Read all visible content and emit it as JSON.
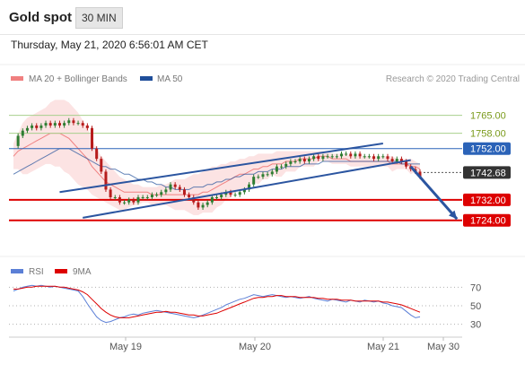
{
  "header": {
    "title": "Gold spot",
    "timeframe": "30 MIN"
  },
  "datetime": "Thursday, May 21, 2020 6:56:01 AM CET",
  "credit": "Research © 2020 Trading Central",
  "colors": {
    "bollinger": "#f08080",
    "ma50": "#1f4e9a",
    "rsi": "#5b7fd6",
    "rsi_ma": "#dd0000",
    "resistance": "#a8d08d",
    "blue_level": "#2b63b8",
    "support": "#dd0000",
    "channel": "#2b55a0",
    "last": "#333333"
  },
  "chart_data": [
    {
      "type": "line",
      "legend": [
        {
          "name": "MA 20 + Bollinger Bands",
          "color": "#f08080"
        },
        {
          "name": "MA 50",
          "color": "#1f4e9a"
        }
      ],
      "ylim": [
        1712,
        1775
      ],
      "x_ticks": [
        "May 19",
        "May 20",
        "May 21",
        "May 30"
      ],
      "levels": [
        {
          "value": 1765.0,
          "label": "1765.00",
          "kind": "resistance"
        },
        {
          "value": 1758.0,
          "label": "1758.00",
          "kind": "resistance"
        },
        {
          "value": 1752.0,
          "label": "1752.00",
          "kind": "blue_level"
        },
        {
          "value": 1742.68,
          "label": "1742.68",
          "kind": "last"
        },
        {
          "value": 1732.0,
          "label": "1732.00",
          "kind": "support"
        },
        {
          "value": 1724.0,
          "label": "1724.00",
          "kind": "support"
        }
      ],
      "price": [
        1753,
        1757,
        1759,
        1760,
        1761,
        1760,
        1761,
        1762,
        1761,
        1762,
        1761,
        1762,
        1763,
        1762,
        1762,
        1761,
        1760,
        1752,
        1748,
        1743,
        1736,
        1733,
        1733,
        1731,
        1731,
        1732,
        1731,
        1733,
        1733,
        1733,
        1734,
        1734,
        1735,
        1736,
        1738,
        1737,
        1736,
        1734,
        1733,
        1731,
        1729,
        1730,
        1731,
        1733,
        1733,
        1734,
        1735,
        1734,
        1734,
        1735,
        1736,
        1738,
        1741,
        1741,
        1742,
        1742,
        1743,
        1745,
        1745,
        1746,
        1747,
        1747,
        1748,
        1747,
        1748,
        1749,
        1748,
        1749,
        1749,
        1749,
        1749,
        1750,
        1750,
        1749,
        1750,
        1749,
        1749,
        1749,
        1748,
        1749,
        1749,
        1748,
        1747,
        1748,
        1747,
        1745,
        1744,
        1743,
        1741
      ],
      "ma20_center": [
        1749,
        1751,
        1752,
        1753,
        1754,
        1755,
        1756,
        1757,
        1758,
        1758,
        1758,
        1757,
        1756,
        1754,
        1752,
        1750,
        1748,
        1745,
        1743,
        1741,
        1739,
        1738,
        1737,
        1736,
        1735,
        1735,
        1735,
        1735,
        1735,
        1735,
        1734,
        1734,
        1734,
        1734,
        1734,
        1734,
        1734,
        1734,
        1734,
        1734,
        1734,
        1735,
        1735,
        1736,
        1737,
        1738,
        1739,
        1740,
        1741,
        1742,
        1742,
        1743,
        1744,
        1744,
        1745,
        1745,
        1746,
        1746,
        1746,
        1747,
        1747,
        1747,
        1748,
        1748,
        1748,
        1748,
        1749,
        1749,
        1749,
        1748,
        1748,
        1748,
        1748,
        1747,
        1747,
        1747,
        1747,
        1747,
        1747,
        1747,
        1747,
        1747,
        1746,
        1746,
        1746,
        1746,
        1745,
        1745,
        1744
      ],
      "bb_upper": [
        1754,
        1758,
        1762,
        1764,
        1765,
        1766,
        1767,
        1768,
        1770,
        1771,
        1771,
        1771,
        1770,
        1768,
        1766,
        1763,
        1760,
        1756,
        1752,
        1749,
        1747,
        1745,
        1743,
        1741,
        1740,
        1739,
        1738,
        1738,
        1737,
        1737,
        1737,
        1737,
        1738,
        1738,
        1739,
        1740,
        1740,
        1740,
        1741,
        1742,
        1742,
        1743,
        1744,
        1745,
        1745,
        1746,
        1746,
        1747,
        1747,
        1748,
        1748,
        1749,
        1749,
        1750,
        1750,
        1750,
        1750,
        1751,
        1751,
        1751,
        1751,
        1751,
        1751,
        1751,
        1751,
        1751,
        1751,
        1751,
        1751,
        1750,
        1750,
        1750,
        1750,
        1749,
        1749,
        1749,
        1749,
        1749,
        1749,
        1749,
        1749,
        1749,
        1749,
        1748,
        1748,
        1748,
        1748,
        1747,
        1746
      ],
      "bb_lower": [
        1744,
        1744,
        1742,
        1742,
        1743,
        1744,
        1745,
        1746,
        1746,
        1745,
        1745,
        1743,
        1742,
        1740,
        1738,
        1737,
        1736,
        1734,
        1733,
        1732,
        1731,
        1730,
        1729,
        1728,
        1728,
        1729,
        1730,
        1730,
        1731,
        1731,
        1730,
        1730,
        1730,
        1730,
        1729,
        1728,
        1728,
        1728,
        1727,
        1726,
        1726,
        1727,
        1727,
        1727,
        1729,
        1730,
        1732,
        1733,
        1735,
        1736,
        1736,
        1737,
        1739,
        1738,
        1740,
        1740,
        1742,
        1741,
        1741,
        1743,
        1743,
        1743,
        1745,
        1745,
        1745,
        1745,
        1747,
        1747,
        1747,
        1746,
        1746,
        1746,
        1746,
        1745,
        1745,
        1745,
        1745,
        1745,
        1745,
        1745,
        1745,
        1745,
        1743,
        1744,
        1744,
        1744,
        1742,
        1743,
        1742
      ],
      "ma50": [
        1742,
        1743,
        1744,
        1745,
        1746,
        1747,
        1748,
        1749,
        1750,
        1751,
        1752,
        1752,
        1752,
        1751,
        1750,
        1749,
        1748,
        1747,
        1746,
        1745,
        1745,
        1744,
        1744,
        1743,
        1742,
        1742,
        1741,
        1740,
        1740,
        1739,
        1739,
        1738,
        1738,
        1737,
        1737,
        1736,
        1736,
        1736,
        1736,
        1737,
        1737,
        1737,
        1738,
        1738,
        1739,
        1739,
        1740,
        1740,
        1741,
        1741,
        1742,
        1742,
        1742,
        1743,
        1743,
        1743,
        1744,
        1744,
        1744,
        1745,
        1745,
        1745,
        1745,
        1746,
        1746,
        1746,
        1746,
        1747,
        1747,
        1747,
        1747,
        1747,
        1747,
        1747,
        1747,
        1747,
        1747,
        1747,
        1747,
        1747,
        1747,
        1747,
        1747,
        1747,
        1746,
        1746,
        1746,
        1746,
        1746
      ],
      "channel": {
        "upper": [
          [
            10,
            1735.0
          ],
          [
            80,
            1754.0
          ]
        ],
        "lower": [
          [
            15,
            1725.0
          ],
          [
            86,
            1747.5
          ]
        ]
      },
      "projection": [
        [
          86,
          1745.0
        ],
        [
          96,
          1724.5
        ]
      ]
    },
    {
      "type": "line",
      "legend": [
        {
          "name": "RSI",
          "color": "#5b7fd6"
        },
        {
          "name": "9MA",
          "color": "#dd0000"
        }
      ],
      "ylim": [
        20,
        80
      ],
      "y_ticks": [
        "70",
        "50",
        "30"
      ],
      "rsi": [
        66,
        68,
        70,
        71,
        72,
        71,
        72,
        71,
        70,
        71,
        70,
        69,
        68,
        67,
        66,
        60,
        52,
        45,
        38,
        34,
        32,
        33,
        35,
        37,
        38,
        40,
        41,
        40,
        42,
        43,
        44,
        45,
        44,
        43,
        42,
        41,
        40,
        39,
        38,
        37,
        38,
        40,
        42,
        44,
        46,
        48,
        51,
        53,
        55,
        57,
        58,
        60,
        62,
        61,
        60,
        61,
        62,
        61,
        60,
        59,
        60,
        59,
        58,
        59,
        60,
        58,
        57,
        56,
        55,
        57,
        56,
        55,
        54,
        56,
        55,
        54,
        56,
        55,
        54,
        55,
        53,
        52,
        50,
        49,
        48,
        44,
        40,
        37,
        38
      ],
      "rsi_ma": [
        68,
        68,
        69,
        70,
        70,
        71,
        71,
        71,
        71,
        71,
        70,
        70,
        69,
        68,
        67,
        65,
        62,
        57,
        52,
        47,
        43,
        40,
        38,
        37,
        37,
        37,
        38,
        39,
        40,
        41,
        42,
        43,
        43,
        44,
        43,
        43,
        42,
        41,
        40,
        40,
        39,
        39,
        40,
        41,
        42,
        44,
        46,
        48,
        50,
        52,
        54,
        56,
        58,
        59,
        59,
        60,
        60,
        61,
        61,
        60,
        60,
        60,
        59,
        59,
        59,
        59,
        58,
        58,
        57,
        57,
        57,
        56,
        56,
        56,
        55,
        55,
        55,
        55,
        55,
        55,
        54,
        54,
        53,
        52,
        51,
        49,
        47,
        45,
        43
      ]
    }
  ]
}
